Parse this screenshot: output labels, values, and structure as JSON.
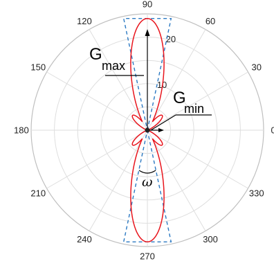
{
  "chart_data": {
    "type": "polar-line",
    "title": "",
    "angle_unit": "degrees",
    "angle_ticks": [
      0,
      30,
      60,
      90,
      120,
      150,
      180,
      210,
      240,
      270,
      300,
      330
    ],
    "angle_tick_labels": [
      "0",
      "30",
      "60",
      "90",
      "120",
      "150",
      "180",
      "210",
      "240",
      "270",
      "300",
      "330"
    ],
    "radial_range": [
      0,
      25
    ],
    "radial_rings": [
      5,
      10,
      15,
      20,
      25
    ],
    "radial_tick_labels": [
      {
        "value": 10,
        "text": "10"
      },
      {
        "value": 20,
        "text": "20"
      }
    ],
    "grid": true,
    "series": [
      {
        "style": "solid",
        "color": "#e8141c",
        "shape": "main lobes at 90 and 270, side lobes at 45, 135, 225, 315",
        "main_lobe_peak": 24,
        "main_lobe_angles": [
          90,
          270
        ],
        "side_lobe_peak": 4.5,
        "side_lobe_angles": [
          45,
          135,
          225,
          315
        ]
      },
      {
        "style": "dashed",
        "color": "#2a78c2",
        "shape": "flat-topped sector pattern",
        "level": 24,
        "center_angles": [
          90,
          270
        ],
        "half_width_deg": 12
      }
    ],
    "annotations": [
      {
        "id": "gmax",
        "main": "G",
        "sub": "max"
      },
      {
        "id": "gmin",
        "main": "G",
        "sub": "min"
      },
      {
        "id": "omega",
        "text": "ω"
      }
    ]
  }
}
